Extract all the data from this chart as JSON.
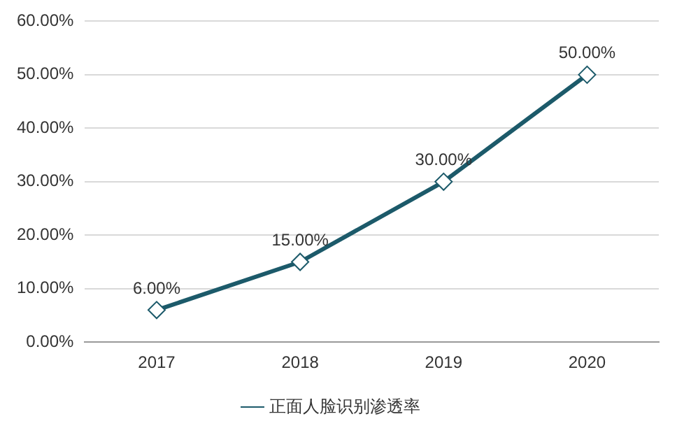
{
  "chart_data": {
    "type": "line",
    "categories": [
      "2017",
      "2018",
      "2019",
      "2020"
    ],
    "series": [
      {
        "name": "正面人脸识别渗透率",
        "color": "#1c5a6a",
        "values": [
          6,
          15,
          30,
          50
        ],
        "value_labels": [
          "6.00%",
          "15.00%",
          "30.00%",
          "50.00%"
        ]
      }
    ],
    "ylim": [
      0,
      60
    ],
    "yticks": [
      {
        "value": 0,
        "label": "0.00%"
      },
      {
        "value": 10,
        "label": "10.00%"
      },
      {
        "value": 20,
        "label": "20.00%"
      },
      {
        "value": 30,
        "label": "30.00%"
      },
      {
        "value": 40,
        "label": "40.00%"
      },
      {
        "value": 50,
        "label": "50.00%"
      },
      {
        "value": 60,
        "label": "60.00%"
      }
    ],
    "grid": "y",
    "legend": "bottom",
    "marker": "diamond"
  }
}
